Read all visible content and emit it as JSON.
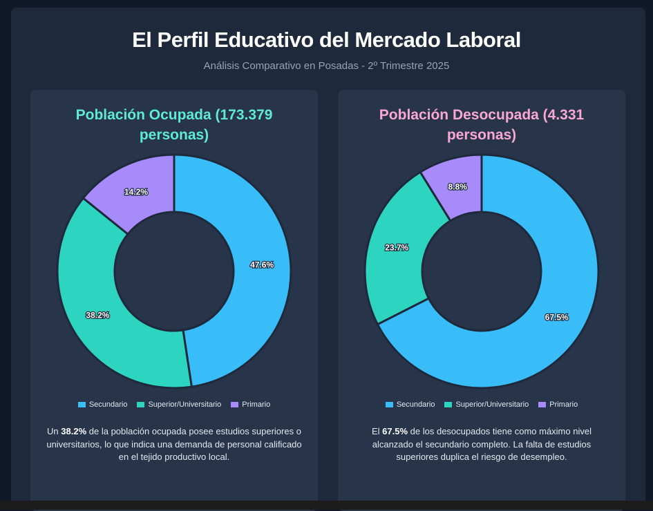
{
  "header": {
    "title": "El Perfil Educativo del Mercado Laboral",
    "subtitle": "Análisis Comparativo en Posadas - 2º Trimestre 2025"
  },
  "colors": {
    "Secundario": "#38bdf8",
    "Superior/Universitario": "#2dd4bf",
    "Primario": "#a78bfa",
    "border": "#1e293b"
  },
  "chart_data": [
    {
      "type": "pie",
      "title": "Población Ocupada (173.379 personas)",
      "categories": [
        "Secundario",
        "Superior/Universitario",
        "Primario"
      ],
      "values": [
        47.6,
        38.2,
        14.2
      ],
      "labels": [
        "47.6%",
        "38.2%",
        "14.2%"
      ],
      "legend": "bottom",
      "description": {
        "pre": "Un ",
        "highlight": "38.2%",
        "post": " de la población ocupada posee estudios superiores o universitarios, lo que indica una demanda de personal calificado en el tejido productivo local."
      }
    },
    {
      "type": "pie",
      "title": "Población Desocupada (4.331 personas)",
      "categories": [
        "Secundario",
        "Superior/Universitario",
        "Primario"
      ],
      "values": [
        67.5,
        23.7,
        8.8
      ],
      "labels": [
        "67.5%",
        "23.7%",
        "8.8%"
      ],
      "legend": "bottom",
      "description": {
        "pre": "El ",
        "highlight": "67.5%",
        "post": " de los desocupados tiene como máximo nivel alcanzado el secundario completo. La falta de estudios superiores duplica el riesgo de desempleo."
      }
    }
  ]
}
